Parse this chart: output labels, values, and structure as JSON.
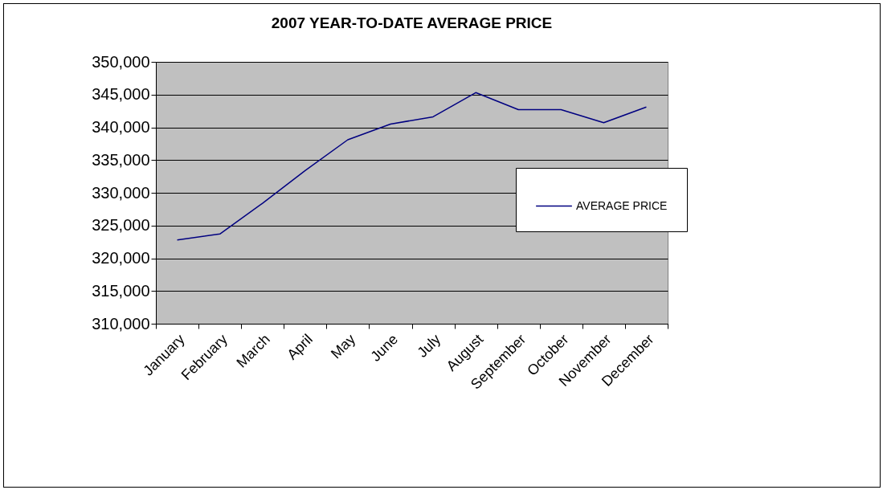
{
  "chart_data": {
    "type": "line",
    "title": "2007 YEAR-TO-DATE AVERAGE PRICE",
    "categories": [
      "January",
      "February",
      "March",
      "April",
      "May",
      "June",
      "July",
      "August",
      "September",
      "October",
      "November",
      "December"
    ],
    "series": [
      {
        "name": "AVERAGE PRICE",
        "color": "#000080",
        "values": [
          322800,
          323700,
          328400,
          333400,
          338100,
          340500,
          341600,
          345300,
          342700,
          342700,
          340700,
          343100
        ]
      }
    ],
    "ylim": [
      310000,
      350000
    ],
    "yticks": [
      {
        "value": 310000,
        "label": "310,000"
      },
      {
        "value": 315000,
        "label": "315,000"
      },
      {
        "value": 320000,
        "label": "320,000"
      },
      {
        "value": 325000,
        "label": "325,000"
      },
      {
        "value": 330000,
        "label": "330,000"
      },
      {
        "value": 335000,
        "label": "335,000"
      },
      {
        "value": 340000,
        "label": "340,000"
      },
      {
        "value": 345000,
        "label": "345,000"
      },
      {
        "value": 350000,
        "label": "350,000"
      }
    ],
    "grid": "y",
    "legend": "right",
    "marker": "none",
    "line_style": "solid"
  }
}
